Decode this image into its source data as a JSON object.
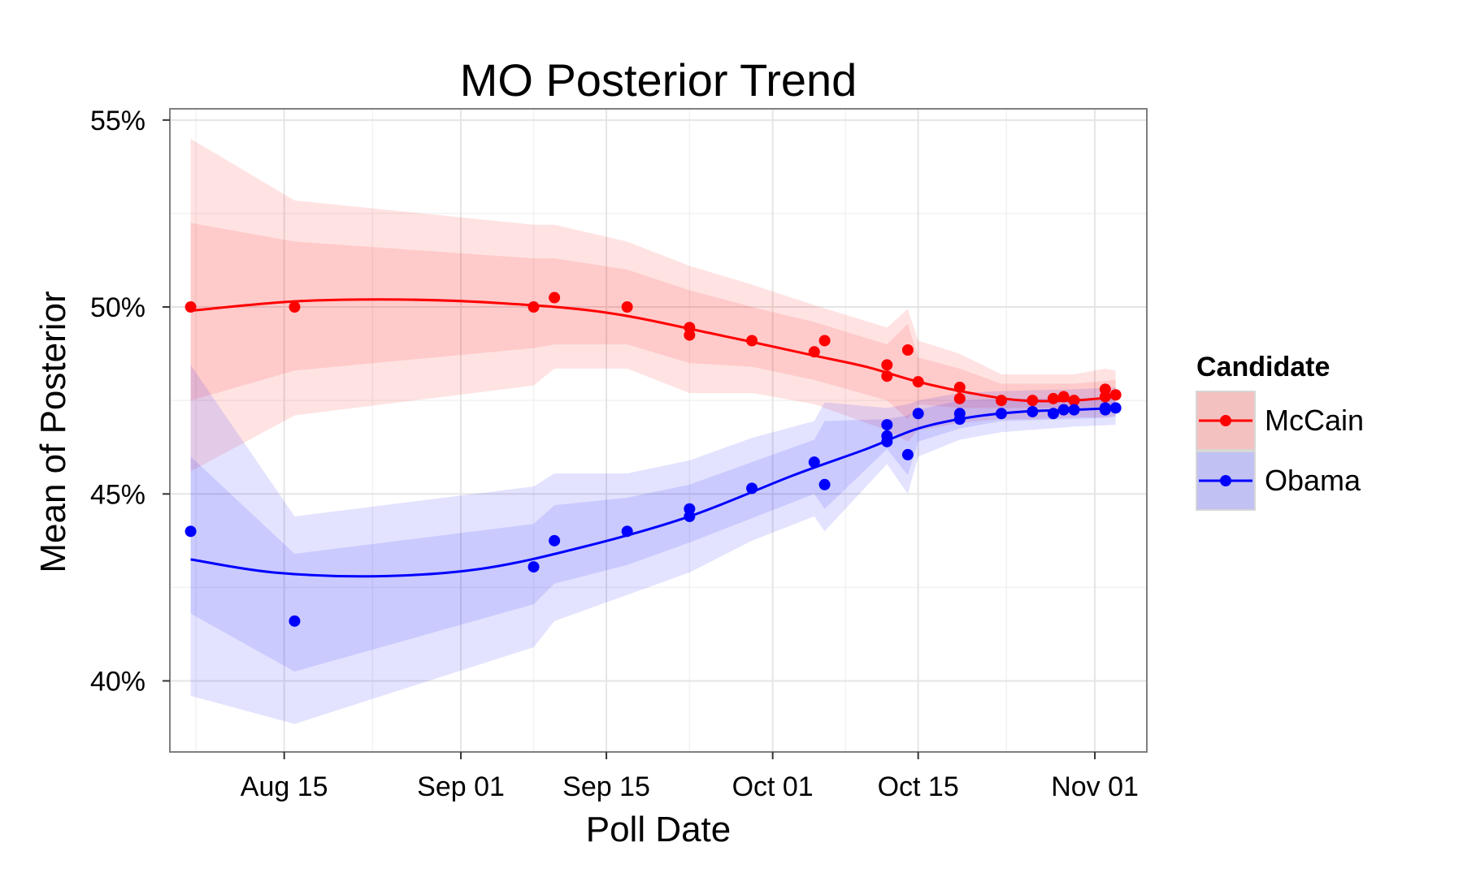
{
  "chart_data": {
    "type": "line",
    "title": "MO  Posterior Trend",
    "xlabel": "Poll Date",
    "ylabel": "Mean of Posterior",
    "x_tick_labels": [
      "Aug 15",
      "Sep 01",
      "Sep 15",
      "Oct 01",
      "Oct 15",
      "Nov 01"
    ],
    "x_tick_dates": [
      "2008-08-15",
      "2008-09-01",
      "2008-09-15",
      "2008-10-01",
      "2008-10-15",
      "2008-11-01"
    ],
    "x_range": [
      "2008-08-04",
      "2008-11-06"
    ],
    "y_tick_labels": [
      "40%",
      "45%",
      "50%",
      "55%"
    ],
    "y_ticks": [
      40,
      45,
      50,
      55
    ],
    "ylim": [
      38.1,
      55.3
    ],
    "grid": true,
    "legend_title": "Candidate",
    "legend_position": "right",
    "series": [
      {
        "name": "McCain",
        "color": "#ff0000",
        "points": [
          {
            "x": "2008-08-06",
            "y": 50.0
          },
          {
            "x": "2008-08-16",
            "y": 50.0
          },
          {
            "x": "2008-09-08",
            "y": 50.0
          },
          {
            "x": "2008-09-10",
            "y": 50.25
          },
          {
            "x": "2008-09-17",
            "y": 50.0
          },
          {
            "x": "2008-09-23",
            "y": 49.45
          },
          {
            "x": "2008-09-23",
            "y": 49.25
          },
          {
            "x": "2008-09-29",
            "y": 49.1
          },
          {
            "x": "2008-10-05",
            "y": 48.8
          },
          {
            "x": "2008-10-06",
            "y": 49.1
          },
          {
            "x": "2008-10-12",
            "y": 48.45
          },
          {
            "x": "2008-10-12",
            "y": 48.15
          },
          {
            "x": "2008-10-14",
            "y": 48.85
          },
          {
            "x": "2008-10-15",
            "y": 48.0
          },
          {
            "x": "2008-10-19",
            "y": 47.85
          },
          {
            "x": "2008-10-19",
            "y": 47.55
          },
          {
            "x": "2008-10-23",
            "y": 47.5
          },
          {
            "x": "2008-10-26",
            "y": 47.5
          },
          {
            "x": "2008-10-28",
            "y": 47.55
          },
          {
            "x": "2008-10-29",
            "y": 47.6
          },
          {
            "x": "2008-10-30",
            "y": 47.5
          },
          {
            "x": "2008-11-02",
            "y": 47.8
          },
          {
            "x": "2008-11-02",
            "y": 47.6
          },
          {
            "x": "2008-11-03",
            "y": 47.65
          }
        ],
        "trend": [
          {
            "x": "2008-08-06",
            "y": 49.9
          },
          {
            "x": "2008-08-16",
            "y": 50.15
          },
          {
            "x": "2008-08-26",
            "y": 50.2
          },
          {
            "x": "2008-09-05",
            "y": 50.1
          },
          {
            "x": "2008-09-15",
            "y": 49.85
          },
          {
            "x": "2008-09-25",
            "y": 49.3
          },
          {
            "x": "2008-10-05",
            "y": 48.7
          },
          {
            "x": "2008-10-10",
            "y": 48.4
          },
          {
            "x": "2008-10-15",
            "y": 48.0
          },
          {
            "x": "2008-10-20",
            "y": 47.7
          },
          {
            "x": "2008-10-25",
            "y": 47.5
          },
          {
            "x": "2008-10-30",
            "y": 47.5
          },
          {
            "x": "2008-11-03",
            "y": 47.6
          }
        ],
        "band_outer": [
          {
            "x": "2008-08-06",
            "lo": 45.6,
            "hi": 54.5
          },
          {
            "x": "2008-08-16",
            "lo": 47.1,
            "hi": 52.85
          },
          {
            "x": "2008-09-08",
            "lo": 47.9,
            "hi": 52.2
          },
          {
            "x": "2008-09-10",
            "lo": 48.35,
            "hi": 52.2
          },
          {
            "x": "2008-09-17",
            "lo": 48.35,
            "hi": 51.75
          },
          {
            "x": "2008-09-23",
            "lo": 47.7,
            "hi": 51.1
          },
          {
            "x": "2008-09-29",
            "lo": 47.7,
            "hi": 50.6
          },
          {
            "x": "2008-10-05",
            "lo": 47.4,
            "hi": 50.05
          },
          {
            "x": "2008-10-12",
            "lo": 46.7,
            "hi": 49.45
          },
          {
            "x": "2008-10-14",
            "lo": 46.4,
            "hi": 49.95
          },
          {
            "x": "2008-10-15",
            "lo": 46.7,
            "hi": 49.1
          },
          {
            "x": "2008-10-19",
            "lo": 46.9,
            "hi": 48.75
          },
          {
            "x": "2008-10-23",
            "lo": 47.0,
            "hi": 48.2
          },
          {
            "x": "2008-10-26",
            "lo": 47.0,
            "hi": 48.2
          },
          {
            "x": "2008-10-30",
            "lo": 47.05,
            "hi": 48.2
          },
          {
            "x": "2008-11-02",
            "lo": 47.05,
            "hi": 48.35
          },
          {
            "x": "2008-11-03",
            "lo": 47.1,
            "hi": 48.3
          }
        ],
        "band_inner": [
          {
            "x": "2008-08-06",
            "lo": 47.5,
            "hi": 52.25
          },
          {
            "x": "2008-08-16",
            "lo": 48.3,
            "hi": 51.75
          },
          {
            "x": "2008-09-08",
            "lo": 48.9,
            "hi": 51.3
          },
          {
            "x": "2008-09-10",
            "lo": 49.0,
            "hi": 51.3
          },
          {
            "x": "2008-09-17",
            "lo": 49.0,
            "hi": 51.0
          },
          {
            "x": "2008-09-23",
            "lo": 48.5,
            "hi": 50.45
          },
          {
            "x": "2008-09-29",
            "lo": 48.4,
            "hi": 50.0
          },
          {
            "x": "2008-10-05",
            "lo": 48.05,
            "hi": 49.6
          },
          {
            "x": "2008-10-12",
            "lo": 47.5,
            "hi": 49.0
          },
          {
            "x": "2008-10-14",
            "lo": 47.0,
            "hi": 49.55
          },
          {
            "x": "2008-10-15",
            "lo": 47.4,
            "hi": 48.65
          },
          {
            "x": "2008-10-19",
            "lo": 47.3,
            "hi": 48.35
          },
          {
            "x": "2008-10-23",
            "lo": 47.3,
            "hi": 47.95
          },
          {
            "x": "2008-10-30",
            "lo": 47.3,
            "hi": 47.95
          },
          {
            "x": "2008-11-03",
            "lo": 47.35,
            "hi": 48.05
          }
        ]
      },
      {
        "name": "Obama",
        "color": "#0000ff",
        "points": [
          {
            "x": "2008-08-06",
            "y": 44.0
          },
          {
            "x": "2008-08-16",
            "y": 41.6
          },
          {
            "x": "2008-09-08",
            "y": 43.05
          },
          {
            "x": "2008-09-10",
            "y": 43.75
          },
          {
            "x": "2008-09-17",
            "y": 44.0
          },
          {
            "x": "2008-09-23",
            "y": 44.6
          },
          {
            "x": "2008-09-23",
            "y": 44.4
          },
          {
            "x": "2008-09-29",
            "y": 45.15
          },
          {
            "x": "2008-10-05",
            "y": 45.85
          },
          {
            "x": "2008-10-06",
            "y": 45.25
          },
          {
            "x": "2008-10-12",
            "y": 46.85
          },
          {
            "x": "2008-10-12",
            "y": 46.55
          },
          {
            "x": "2008-10-12",
            "y": 46.4
          },
          {
            "x": "2008-10-14",
            "y": 46.05
          },
          {
            "x": "2008-10-15",
            "y": 47.15
          },
          {
            "x": "2008-10-19",
            "y": 47.15
          },
          {
            "x": "2008-10-19",
            "y": 47.0
          },
          {
            "x": "2008-10-23",
            "y": 47.15
          },
          {
            "x": "2008-10-26",
            "y": 47.2
          },
          {
            "x": "2008-10-28",
            "y": 47.15
          },
          {
            "x": "2008-10-29",
            "y": 47.25
          },
          {
            "x": "2008-10-30",
            "y": 47.25
          },
          {
            "x": "2008-11-02",
            "y": 47.3
          },
          {
            "x": "2008-11-02",
            "y": 47.25
          },
          {
            "x": "2008-11-03",
            "y": 47.3
          }
        ],
        "trend": [
          {
            "x": "2008-08-06",
            "y": 43.25
          },
          {
            "x": "2008-08-14",
            "y": 42.9
          },
          {
            "x": "2008-08-24",
            "y": 42.8
          },
          {
            "x": "2008-09-03",
            "y": 43.0
          },
          {
            "x": "2008-09-13",
            "y": 43.6
          },
          {
            "x": "2008-09-23",
            "y": 44.4
          },
          {
            "x": "2008-10-03",
            "y": 45.5
          },
          {
            "x": "2008-10-10",
            "y": 46.2
          },
          {
            "x": "2008-10-15",
            "y": 46.75
          },
          {
            "x": "2008-10-20",
            "y": 47.05
          },
          {
            "x": "2008-10-25",
            "y": 47.2
          },
          {
            "x": "2008-10-30",
            "y": 47.25
          },
          {
            "x": "2008-11-03",
            "y": 47.3
          }
        ],
        "band_outer": [
          {
            "x": "2008-08-06",
            "lo": 39.6,
            "hi": 48.45
          },
          {
            "x": "2008-08-16",
            "lo": 38.85,
            "hi": 44.4
          },
          {
            "x": "2008-09-08",
            "lo": 40.9,
            "hi": 45.2
          },
          {
            "x": "2008-09-10",
            "lo": 41.6,
            "hi": 45.55
          },
          {
            "x": "2008-09-17",
            "lo": 42.3,
            "hi": 45.55
          },
          {
            "x": "2008-09-23",
            "lo": 42.9,
            "hi": 45.9
          },
          {
            "x": "2008-09-29",
            "lo": 43.75,
            "hi": 46.5
          },
          {
            "x": "2008-10-05",
            "lo": 44.4,
            "hi": 46.95
          },
          {
            "x": "2008-10-06",
            "lo": 44.0,
            "hi": 47.45
          },
          {
            "x": "2008-10-12",
            "lo": 45.8,
            "hi": 47.3
          },
          {
            "x": "2008-10-14",
            "lo": 45.0,
            "hi": 47.4
          },
          {
            "x": "2008-10-15",
            "lo": 46.0,
            "hi": 47.5
          },
          {
            "x": "2008-10-19",
            "lo": 46.45,
            "hi": 47.7
          },
          {
            "x": "2008-10-23",
            "lo": 46.65,
            "hi": 47.75
          },
          {
            "x": "2008-10-30",
            "lo": 46.8,
            "hi": 47.8
          },
          {
            "x": "2008-11-03",
            "lo": 46.85,
            "hi": 47.85
          }
        ],
        "band_inner": [
          {
            "x": "2008-08-06",
            "lo": 41.8,
            "hi": 46.0
          },
          {
            "x": "2008-08-16",
            "lo": 40.25,
            "hi": 43.4
          },
          {
            "x": "2008-09-08",
            "lo": 42.05,
            "hi": 44.2
          },
          {
            "x": "2008-09-10",
            "lo": 42.6,
            "hi": 44.7
          },
          {
            "x": "2008-09-17",
            "lo": 43.1,
            "hi": 44.9
          },
          {
            "x": "2008-09-23",
            "lo": 43.7,
            "hi": 45.25
          },
          {
            "x": "2008-09-29",
            "lo": 44.35,
            "hi": 45.85
          },
          {
            "x": "2008-10-05",
            "lo": 45.0,
            "hi": 46.45
          },
          {
            "x": "2008-10-06",
            "lo": 44.6,
            "hi": 46.95
          },
          {
            "x": "2008-10-12",
            "lo": 46.2,
            "hi": 47.0
          },
          {
            "x": "2008-10-14",
            "lo": 45.5,
            "hi": 47.1
          },
          {
            "x": "2008-10-15",
            "lo": 46.4,
            "hi": 47.25
          },
          {
            "x": "2008-10-19",
            "lo": 46.75,
            "hi": 47.5
          },
          {
            "x": "2008-10-23",
            "lo": 46.95,
            "hi": 47.55
          },
          {
            "x": "2008-10-30",
            "lo": 47.0,
            "hi": 47.55
          },
          {
            "x": "2008-11-03",
            "lo": 47.05,
            "hi": 47.6
          }
        ]
      }
    ]
  }
}
